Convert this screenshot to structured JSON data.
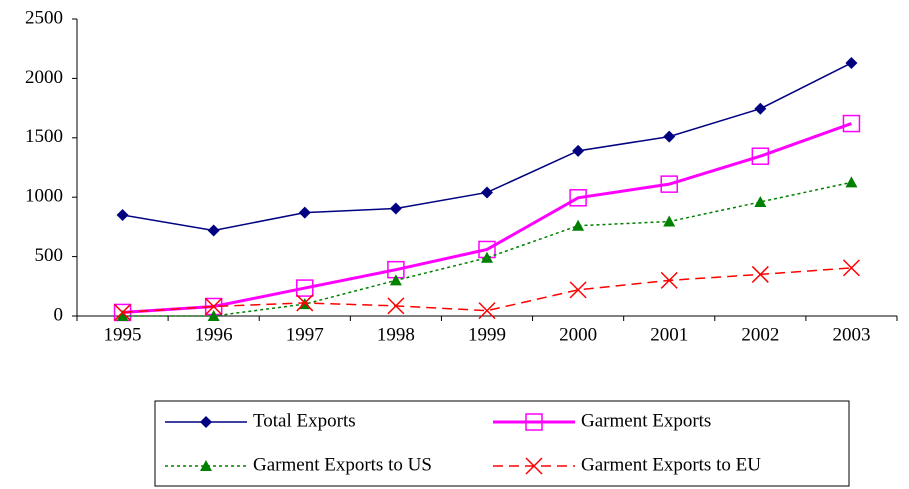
{
  "chart_data": {
    "type": "line",
    "categories": [
      "1995",
      "1996",
      "1997",
      "1998",
      "1999",
      "2000",
      "2001",
      "2002",
      "2003"
    ],
    "series": [
      {
        "name": "Total Exports",
        "color": "#000080",
        "marker": "diamond",
        "dash": "solid",
        "width": 1.5,
        "values": [
          850,
          720,
          870,
          905,
          1040,
          1390,
          1510,
          1745,
          2130
        ]
      },
      {
        "name": "Garment Exports",
        "color": "#ff00ff",
        "marker": "square",
        "dash": "solid",
        "width": 3,
        "values": [
          30,
          80,
          235,
          390,
          560,
          995,
          1110,
          1345,
          1620
        ]
      },
      {
        "name": "Garment Exports to US",
        "color": "#008000",
        "marker": "triangle",
        "dash": "dotted",
        "width": 1.5,
        "values": [
          0,
          0,
          100,
          300,
          490,
          760,
          795,
          960,
          1125
        ]
      },
      {
        "name": "Garment Exports to EU",
        "color": "#ff0000",
        "marker": "cross",
        "dash": "dashed",
        "width": 1.5,
        "values": [
          30,
          80,
          110,
          85,
          45,
          220,
          300,
          350,
          405
        ]
      }
    ],
    "ylim": [
      0,
      2500
    ],
    "yticks": [
      0,
      500,
      1000,
      1500,
      2000,
      2500
    ],
    "grid": false,
    "legend": "bottom"
  }
}
